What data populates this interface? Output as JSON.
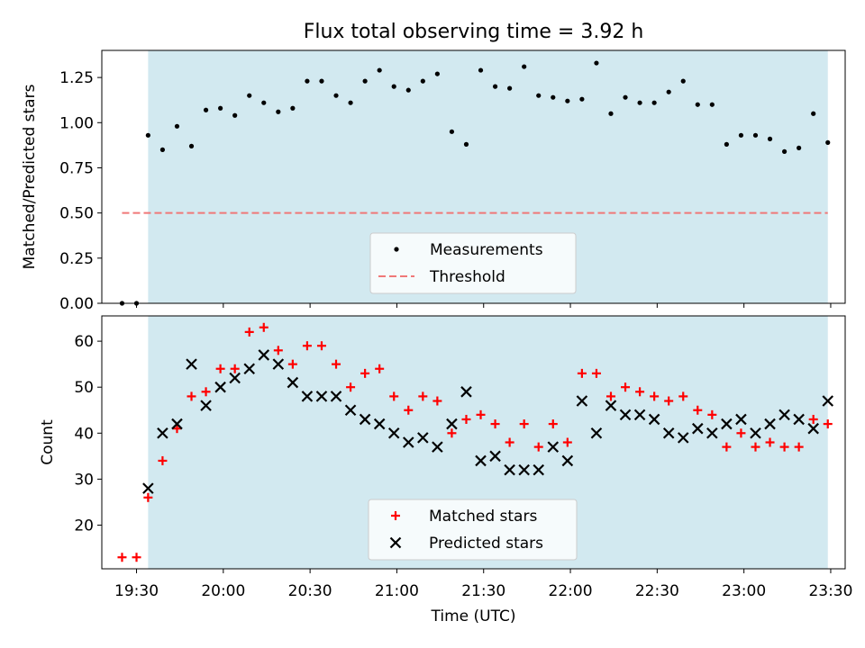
{
  "chart_data": [
    {
      "type": "scatter",
      "title": "Flux total observing time = 3.92 h",
      "ylabel": "Matched/Predicted stars",
      "xlabel": "",
      "xlim": [
        "19:18",
        "23:35"
      ],
      "ylim": [
        0,
        1.4
      ],
      "yticks": [
        "0.00",
        "0.25",
        "0.50",
        "0.75",
        "1.00",
        "1.25"
      ],
      "shaded_span": [
        "19:34",
        "23:29"
      ],
      "shade_color": "#d2e9f0",
      "legend": [
        {
          "label": "Measurements",
          "marker": "dot",
          "color": "#000000"
        },
        {
          "label": "Threshold",
          "marker": "dashed-line",
          "color": "#f07878"
        }
      ],
      "threshold": {
        "y": 0.5,
        "x_from": "19:25",
        "x_to": "23:29"
      },
      "series": [
        {
          "name": "Measurements",
          "color": "#000000",
          "points": [
            [
              "19:25",
              0.0
            ],
            [
              "19:30",
              0.0
            ],
            [
              "19:34",
              0.93
            ],
            [
              "19:39",
              0.85
            ],
            [
              "19:44",
              0.98
            ],
            [
              "19:49",
              0.87
            ],
            [
              "19:54",
              1.07
            ],
            [
              "19:59",
              1.08
            ],
            [
              "20:04",
              1.04
            ],
            [
              "20:09",
              1.15
            ],
            [
              "20:14",
              1.11
            ],
            [
              "20:19",
              1.06
            ],
            [
              "20:24",
              1.08
            ],
            [
              "20:29",
              1.23
            ],
            [
              "20:34",
              1.23
            ],
            [
              "20:39",
              1.15
            ],
            [
              "20:44",
              1.11
            ],
            [
              "20:49",
              1.23
            ],
            [
              "20:54",
              1.29
            ],
            [
              "20:59",
              1.2
            ],
            [
              "21:04",
              1.18
            ],
            [
              "21:09",
              1.23
            ],
            [
              "21:14",
              1.27
            ],
            [
              "21:19",
              0.95
            ],
            [
              "21:24",
              0.88
            ],
            [
              "21:29",
              1.29
            ],
            [
              "21:34",
              1.2
            ],
            [
              "21:39",
              1.19
            ],
            [
              "21:44",
              1.31
            ],
            [
              "21:49",
              1.15
            ],
            [
              "21:54",
              1.14
            ],
            [
              "21:59",
              1.12
            ],
            [
              "22:04",
              1.13
            ],
            [
              "22:09",
              1.33
            ],
            [
              "22:14",
              1.05
            ],
            [
              "22:19",
              1.14
            ],
            [
              "22:24",
              1.11
            ],
            [
              "22:29",
              1.11
            ],
            [
              "22:34",
              1.17
            ],
            [
              "22:39",
              1.23
            ],
            [
              "22:44",
              1.1
            ],
            [
              "22:49",
              1.1
            ],
            [
              "22:54",
              0.88
            ],
            [
              "22:59",
              0.93
            ],
            [
              "23:04",
              0.93
            ],
            [
              "23:09",
              0.91
            ],
            [
              "23:14",
              0.84
            ],
            [
              "23:19",
              0.86
            ],
            [
              "23:24",
              1.05
            ],
            [
              "23:29",
              0.89
            ]
          ]
        }
      ]
    },
    {
      "type": "scatter",
      "title": "",
      "xlabel": "Time (UTC)",
      "ylabel": "Count",
      "xlim": [
        "19:18",
        "23:35"
      ],
      "ylim": [
        10.5,
        65.5
      ],
      "yticks": [
        "20",
        "30",
        "40",
        "50",
        "60"
      ],
      "xticks": [
        "19:30",
        "20:00",
        "20:30",
        "21:00",
        "21:30",
        "22:00",
        "22:30",
        "23:00",
        "23:30"
      ],
      "shaded_span": [
        "19:34",
        "23:29"
      ],
      "shade_color": "#d2e9f0",
      "legend": [
        {
          "label": "Matched stars",
          "marker": "plus",
          "color": "#ff0000"
        },
        {
          "label": "Predicted stars",
          "marker": "x",
          "color": "#000000"
        }
      ],
      "series": [
        {
          "name": "Matched stars",
          "color": "#ff0000",
          "marker": "plus",
          "points": [
            [
              "19:25",
              13
            ],
            [
              "19:30",
              13
            ],
            [
              "19:34",
              26
            ],
            [
              "19:39",
              34
            ],
            [
              "19:44",
              41
            ],
            [
              "19:49",
              48
            ],
            [
              "19:54",
              49
            ],
            [
              "19:59",
              54
            ],
            [
              "20:04",
              54
            ],
            [
              "20:09",
              62
            ],
            [
              "20:14",
              63
            ],
            [
              "20:19",
              58
            ],
            [
              "20:24",
              55
            ],
            [
              "20:29",
              59
            ],
            [
              "20:34",
              59
            ],
            [
              "20:39",
              55
            ],
            [
              "20:44",
              50
            ],
            [
              "20:49",
              53
            ],
            [
              "20:54",
              54
            ],
            [
              "20:59",
              48
            ],
            [
              "21:04",
              45
            ],
            [
              "21:09",
              48
            ],
            [
              "21:14",
              47
            ],
            [
              "21:19",
              40
            ],
            [
              "21:24",
              43
            ],
            [
              "21:29",
              44
            ],
            [
              "21:34",
              42
            ],
            [
              "21:39",
              38
            ],
            [
              "21:44",
              42
            ],
            [
              "21:49",
              37
            ],
            [
              "21:54",
              42
            ],
            [
              "21:59",
              38
            ],
            [
              "22:04",
              53
            ],
            [
              "22:09",
              53
            ],
            [
              "22:14",
              48
            ],
            [
              "22:19",
              50
            ],
            [
              "22:24",
              49
            ],
            [
              "22:29",
              48
            ],
            [
              "22:34",
              47
            ],
            [
              "22:39",
              48
            ],
            [
              "22:44",
              45
            ],
            [
              "22:49",
              44
            ],
            [
              "22:54",
              37
            ],
            [
              "22:59",
              40
            ],
            [
              "23:04",
              37
            ],
            [
              "23:09",
              38
            ],
            [
              "23:14",
              37
            ],
            [
              "23:19",
              37
            ],
            [
              "23:24",
              43
            ],
            [
              "23:29",
              42
            ]
          ]
        },
        {
          "name": "Predicted stars",
          "color": "#000000",
          "marker": "x",
          "points": [
            [
              "19:34",
              28
            ],
            [
              "19:39",
              40
            ],
            [
              "19:44",
              42
            ],
            [
              "19:49",
              55
            ],
            [
              "19:54",
              46
            ],
            [
              "19:59",
              50
            ],
            [
              "20:04",
              52
            ],
            [
              "20:09",
              54
            ],
            [
              "20:14",
              57
            ],
            [
              "20:19",
              55
            ],
            [
              "20:24",
              51
            ],
            [
              "20:29",
              48
            ],
            [
              "20:34",
              48
            ],
            [
              "20:39",
              48
            ],
            [
              "20:44",
              45
            ],
            [
              "20:49",
              43
            ],
            [
              "20:54",
              42
            ],
            [
              "20:59",
              40
            ],
            [
              "21:04",
              38
            ],
            [
              "21:09",
              39
            ],
            [
              "21:14",
              37
            ],
            [
              "21:19",
              42
            ],
            [
              "21:24",
              49
            ],
            [
              "21:29",
              34
            ],
            [
              "21:34",
              35
            ],
            [
              "21:39",
              32
            ],
            [
              "21:44",
              32
            ],
            [
              "21:49",
              32
            ],
            [
              "21:54",
              37
            ],
            [
              "21:59",
              34
            ],
            [
              "22:04",
              47
            ],
            [
              "22:09",
              40
            ],
            [
              "22:14",
              46
            ],
            [
              "22:19",
              44
            ],
            [
              "22:24",
              44
            ],
            [
              "22:29",
              43
            ],
            [
              "22:34",
              40
            ],
            [
              "22:39",
              39
            ],
            [
              "22:44",
              41
            ],
            [
              "22:49",
              40
            ],
            [
              "22:54",
              42
            ],
            [
              "22:59",
              43
            ],
            [
              "23:04",
              40
            ],
            [
              "23:09",
              42
            ],
            [
              "23:14",
              44
            ],
            [
              "23:19",
              43
            ],
            [
              "23:24",
              41
            ],
            [
              "23:29",
              47
            ]
          ]
        }
      ]
    }
  ]
}
